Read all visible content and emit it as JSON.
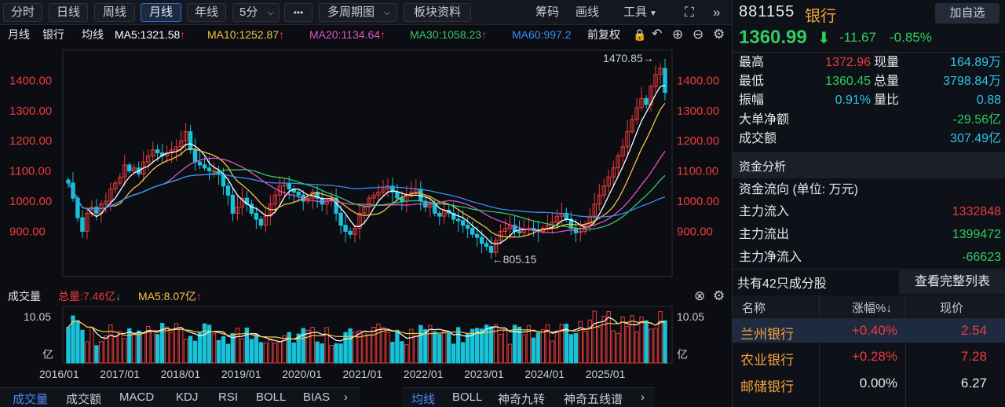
{
  "toolbar": {
    "periods": [
      "分时",
      "日线",
      "周线",
      "月线",
      "年线",
      "5分"
    ],
    "active": "月线",
    "more": "•••",
    "multi": "多周期图",
    "block": "板块资料",
    "chips": "筹码",
    "draw": "画线",
    "tools": "工具",
    "expand_icon": "expand-icon",
    "collapse_icon": "double-chevron-right-icon"
  },
  "infobar": {
    "period": "月线",
    "name": "银行",
    "ma_label": "均线",
    "ma5": "MA5:1321.58",
    "ma10": "MA10:1252.87",
    "ma20": "MA20:1134.64",
    "ma30": "MA30:1058.23",
    "ma60": "MA60:997.2",
    "adjust": "前复权"
  },
  "colors": {
    "up": "#ee3b3b",
    "down": "#18c2d9",
    "ma5": "#ffffff",
    "ma10": "#f5c542",
    "ma20": "#e052c8",
    "ma30": "#36c86a",
    "ma60": "#3a8df5",
    "bg": "#0b0d12",
    "accent": "#4d8df7"
  },
  "chart_data": {
    "type": "candlestick",
    "x": [
      "2016/01",
      "2017/01",
      "2018/01",
      "2019/01",
      "2020/01",
      "2021/01",
      "2022/01",
      "2023/01",
      "2024/01",
      "2025/01"
    ],
    "ylim": [
      750,
      1500
    ],
    "yticks": [
      "1400.00",
      "1300.00",
      "1200.00",
      "1100.00",
      "1000.00",
      "900.00"
    ],
    "max_label": "1470.85→",
    "min_label": "←805.15",
    "max": 1470.85,
    "min": 805.15,
    "close_series": [
      1060,
      1010,
      945,
      900,
      960,
      980,
      960,
      990,
      1000,
      1040,
      1060,
      1080,
      1120,
      1100,
      1110,
      1090,
      1130,
      1150,
      1170,
      1160,
      1150,
      1160,
      1170,
      1180,
      1200,
      1230,
      1170,
      1130,
      1120,
      1110,
      1100,
      1100,
      1090,
      1050,
      1020,
      960,
      980,
      1010,
      990,
      960,
      940,
      920,
      950,
      990,
      1020,
      1050,
      1060,
      1040,
      1030,
      1020,
      1000,
      1010,
      1030,
      1010,
      990,
      1000,
      1010,
      960,
      920,
      900,
      890,
      910,
      960,
      980,
      1010,
      1020,
      1030,
      1040,
      1050,
      1030,
      1010,
      1000,
      1020,
      1030,
      1040,
      1000,
      980,
      990,
      960,
      950,
      970,
      960,
      940,
      935,
      920,
      910,
      890,
      880,
      860,
      850,
      830,
      870,
      900,
      910,
      920,
      900,
      895,
      905,
      910,
      905,
      900,
      910,
      920,
      930,
      950,
      960,
      940,
      910,
      895,
      900,
      920,
      950,
      990,
      1020,
      1050,
      1080,
      1110,
      1150,
      1180,
      1230,
      1270,
      1310,
      1340,
      1320,
      1380,
      1420,
      1440,
      1360
    ],
    "volume": {
      "total": "总量:7.46亿",
      "ma5": "MA5:8.07亿",
      "ytop": "10.05",
      "unit": "亿"
    }
  },
  "vol_header": {
    "label": "成交量",
    "total": "总量:7.46亿",
    "ma5": "MA5:8.07亿"
  },
  "bottom_tabs_left": [
    "成交量",
    "成交额",
    "MACD",
    "KDJ",
    "RSI",
    "BOLL",
    "BIAS"
  ],
  "bottom_tabs_right": [
    "均线",
    "BOLL",
    "神奇九转",
    "神奇五线谱"
  ],
  "quote": {
    "code": "881155",
    "name": "银行",
    "add_button": "加自选",
    "price": "1360.99",
    "change": "-11.67",
    "change_pct": "-0.85%",
    "rows": [
      {
        "l1": "最高",
        "v1": "1372.96",
        "l2": "现量",
        "v2": "164.89万"
      },
      {
        "l1": "最低",
        "v1": "1360.45",
        "l2": "总量",
        "v2": "3798.84万"
      },
      {
        "l1": "振幅",
        "v1": "0.91%",
        "l2": "量比",
        "v2": "0.88"
      }
    ],
    "big_net_label": "大单净额",
    "big_net": "-29.56亿",
    "turnover_label": "成交额",
    "turnover": "307.49亿"
  },
  "fund": {
    "title": "资金分析",
    "unit_label": "资金流向 (单位: 万元)",
    "inflow_label": "主力流入",
    "inflow": "1332848",
    "outflow_label": "主力流出",
    "outflow": "1399472",
    "net_label": "主力净流入",
    "net": "-66623"
  },
  "constituents": {
    "count_label": "共有42只成分股",
    "view_all": "查看完整列表",
    "headers": [
      "名称",
      "涨幅%↓",
      "现价"
    ],
    "rows": [
      {
        "name": "兰州银行",
        "pct": "+0.40%",
        "price": "2.54"
      },
      {
        "name": "农业银行",
        "pct": "+0.28%",
        "price": "7.28"
      },
      {
        "name": "邮储银行",
        "pct": "0.00%",
        "price": "6.27"
      }
    ]
  }
}
